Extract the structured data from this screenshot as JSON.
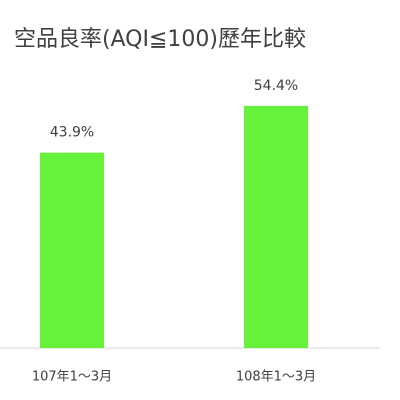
{
  "chart_data": {
    "type": "bar",
    "title": "空品良率(AQI≦100)歷年比較",
    "categories": [
      "107年1～3月",
      "108年1～3月"
    ],
    "values": [
      43.9,
      54.4
    ],
    "value_labels": [
      "43.9%",
      "54.4%"
    ],
    "color": "#66f23a"
  }
}
